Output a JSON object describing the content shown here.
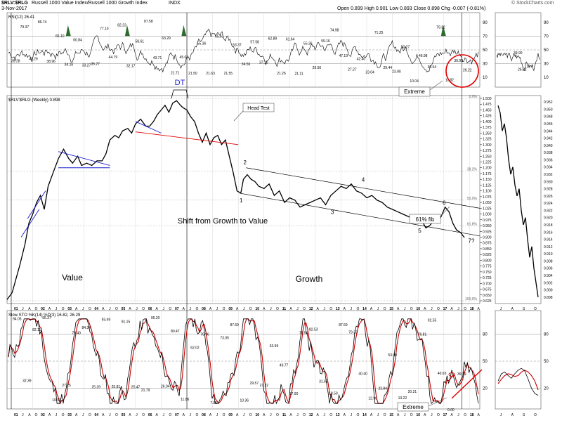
{
  "header": {
    "symbol_title": "$RLV:$RLG",
    "description": "Russell 1000 Value Index/Russell 1000 Growth Index",
    "exchange": "INDX",
    "date": "3-Nov-2017",
    "quote": "Open 0.899  High 0.901  Low 0.893  Close 0.898  Chg -0.007 (-0.81%)",
    "watermark": "© StockCharts.com"
  },
  "colors": {
    "price_line": "#000000",
    "stoch_fast": "#000000",
    "stoch_slow": "#cc0000",
    "rsi_highlight": "#2e6b2e",
    "annotation_red": "#e00000",
    "annotation_blue": "#1a1ad0",
    "grid": "#d9d9d9"
  },
  "chart_data": [
    {
      "type": "line",
      "name": "rsi-panel",
      "title": "RSI(12) 26.41",
      "ylim": [
        0,
        100
      ],
      "y_ticks": [
        10,
        30,
        50,
        70,
        90
      ],
      "reference_lines": [
        30,
        50,
        70
      ],
      "value_labels": [
        "39.28",
        "79.37",
        "42.29",
        "86.74",
        "38.96",
        "66.10",
        "34.16",
        "60.84",
        "33.27",
        "35.27",
        "77.10",
        "44.79",
        "82.23",
        "32.17",
        "58.61",
        "87.58",
        "43.71",
        "63.29",
        "21.71",
        "45.02",
        "21.50",
        "55.36",
        "21.63",
        "65.61",
        "21.55",
        "53.37",
        "34.56",
        "57.58",
        "37.10",
        "62.89",
        "21.26",
        "61.64",
        "21.11",
        "55.36",
        "29.50",
        "59.16",
        "74.98",
        "47.19",
        "27.27",
        "42.40",
        "23.04",
        "71.25",
        "29.44",
        "23.90",
        "50.27",
        "10.04",
        "46.98",
        "30.64",
        "79.32",
        "11.82",
        "39.99",
        "26.22"
      ],
      "annotations": [
        "Extreme"
      ],
      "inset": {
        "value_labels": [
          "39.90",
          "26.22"
        ]
      }
    },
    {
      "type": "line",
      "name": "price-panel",
      "title": "$RLV:$RLG (Weekly) 0.898",
      "ylim": [
        0.625,
        1.5
      ],
      "y_ticks": [
        "1.500",
        "1.475",
        "1.450",
        "1.425",
        "1.400",
        "1.375",
        "1.350",
        "1.325",
        "1.300",
        "1.275",
        "1.250",
        "1.225",
        "1.200",
        "1.175",
        "1.150",
        "1.125",
        "1.100",
        "1.075",
        "1.050",
        "1.025",
        "1.000",
        "0.975",
        "0.950",
        "0.925",
        "0.900",
        "0.875",
        "0.850",
        "0.825",
        "0.800",
        "0.775",
        "0.750",
        "0.725",
        "0.700",
        "0.675",
        "0.650",
        "0.625"
      ],
      "x_ticks": [
        "01",
        "J",
        "A",
        "O",
        "02",
        "A",
        "J",
        "O",
        "03",
        "A",
        "J",
        "O",
        "04",
        "A",
        "J",
        "O",
        "05",
        "A",
        "J",
        "O",
        "06",
        "A",
        "J",
        "O",
        "07",
        "A",
        "J",
        "O",
        "08",
        "A",
        "J",
        "O",
        "09",
        "A",
        "J",
        "O",
        "10",
        "A",
        "J",
        "O",
        "11",
        "A",
        "J",
        "O",
        "12",
        "A",
        "J",
        "O",
        "13",
        "A",
        "J",
        "O",
        "14",
        "A",
        "J",
        "O",
        "15",
        "A",
        "J",
        "O",
        "16",
        "A",
        "J",
        "O",
        "17",
        "A",
        "J",
        "O",
        "18",
        "A"
      ],
      "fib_levels": [
        {
          "label": "0.0%",
          "value": 1.5
        },
        {
          "label": "38.2%",
          "value": 1.186
        },
        {
          "label": "50.0%",
          "value": 1.06
        },
        {
          "label": "61.8%",
          "value": 0.948
        },
        {
          "label": "100.0%",
          "value": 0.625
        }
      ],
      "x": [
        2000.0,
        2000.2,
        2000.35,
        2000.5,
        2000.7,
        2000.85,
        2001.0,
        2001.15,
        2001.3,
        2001.45,
        2001.6,
        2001.8,
        2002.0,
        2002.2,
        2002.4,
        2002.55,
        2002.75,
        2002.9,
        2003.1,
        2003.3,
        2003.5,
        2003.7,
        2003.85,
        2004.0,
        2004.2,
        2004.35,
        2004.5,
        2004.7,
        2004.85,
        2005.0,
        2005.2,
        2005.4,
        2005.55,
        2005.7,
        2005.85,
        2006.0,
        2006.15,
        2006.3,
        2006.45,
        2006.6,
        2006.75,
        2006.85,
        2007.0,
        2007.15,
        2007.3,
        2007.45,
        2007.6,
        2007.75,
        2007.9,
        2008.05,
        2008.2,
        2008.35,
        2008.5,
        2008.65,
        2008.8,
        2008.95,
        2009.1,
        2009.2,
        2009.35,
        2009.5,
        2009.65,
        2009.8,
        2010.0,
        2010.2,
        2010.4,
        2010.6,
        2010.8,
        2011.0,
        2011.2,
        2011.4,
        2011.6,
        2011.8,
        2012.0,
        2012.2,
        2012.4,
        2012.6,
        2012.8,
        2013.0,
        2013.2,
        2013.4,
        2013.6,
        2013.8,
        2014.0,
        2014.2,
        2014.4,
        2014.6,
        2014.8,
        2015.0,
        2015.2,
        2015.4,
        2015.6,
        2015.8,
        2016.0,
        2016.15,
        2016.3,
        2016.45,
        2016.6,
        2016.75,
        2016.9,
        2017.05,
        2017.2,
        2017.35,
        2017.5,
        2017.65,
        2017.8
      ],
      "values": [
        0.63,
        0.66,
        0.72,
        0.78,
        0.87,
        0.96,
        1.0,
        1.05,
        1.08,
        1.02,
        1.12,
        1.18,
        1.24,
        1.28,
        1.24,
        1.22,
        1.25,
        1.21,
        1.22,
        1.21,
        1.23,
        1.23,
        1.26,
        1.32,
        1.34,
        1.33,
        1.36,
        1.37,
        1.35,
        1.39,
        1.41,
        1.38,
        1.38,
        1.4,
        1.43,
        1.45,
        1.47,
        1.44,
        1.48,
        1.49,
        1.47,
        1.46,
        1.45,
        1.42,
        1.4,
        1.35,
        1.31,
        1.35,
        1.3,
        1.33,
        1.34,
        1.3,
        1.32,
        1.25,
        1.18,
        1.1,
        1.09,
        1.15,
        1.17,
        1.15,
        1.14,
        1.12,
        1.11,
        1.13,
        1.08,
        1.1,
        1.05,
        1.07,
        1.06,
        1.03,
        1.04,
        1.05,
        1.06,
        1.07,
        1.04,
        1.08,
        1.1,
        1.12,
        1.11,
        1.13,
        1.1,
        1.09,
        1.07,
        1.08,
        1.06,
        1.05,
        1.03,
        1.02,
        1.01,
        1.0,
        0.99,
        0.98,
        0.96,
        0.97,
        0.94,
        0.95,
        0.97,
        0.96,
        0.99,
        1.03,
        1.01,
        0.96,
        0.93,
        0.92,
        0.898
      ],
      "wave_labels": [
        "1",
        "2",
        "3",
        "4",
        "5",
        "6",
        "7?"
      ],
      "annotations": [
        "DT",
        "Head Test",
        "61% fib",
        "Shift from Growth to Value",
        "Value",
        "Growth"
      ],
      "inset": {
        "x_ticks": [
          "J",
          "A",
          "S",
          "O"
        ],
        "y_ticks": [
          "0.952",
          "0.950",
          "0.948",
          "0.946",
          "0.944",
          "0.942",
          "0.940",
          "0.938",
          "0.936",
          "0.934",
          "0.932",
          "0.930",
          "0.928",
          "0.926",
          "0.924",
          "0.922",
          "0.920",
          "0.918",
          "0.916",
          "0.914",
          "0.912",
          "0.910",
          "0.908",
          "0.906",
          "0.904",
          "0.902",
          "0.900",
          "0.898"
        ],
        "values": [
          0.951,
          0.949,
          0.944,
          0.946,
          0.942,
          0.936,
          0.932,
          0.934,
          0.929,
          0.926,
          0.928,
          0.922,
          0.918,
          0.92,
          0.914,
          0.909,
          0.912,
          0.906,
          0.902,
          0.898
        ]
      }
    },
    {
      "type": "line",
      "name": "stochastic-panel",
      "title": "Slow STO %K(14) %D(3) 16.82, 26.29",
      "ylim": [
        0,
        100
      ],
      "y_ticks": [
        20,
        50,
        80
      ],
      "reference_lines": [
        20,
        50,
        80
      ],
      "value_labels": [
        "94.05",
        "32.39",
        "82.11",
        "95.37",
        "10.92",
        "27.25",
        "78.40",
        "84.34",
        "25.39",
        "93.49",
        "25.81",
        "91.15",
        "25.47",
        "21.79",
        "95.20",
        "26.04",
        "80.47",
        "11.86",
        "62.02",
        "76.96",
        "7.85",
        "73.05",
        "87.69",
        "10.36",
        "29.57",
        "27.22",
        "63.99",
        "49.77",
        "17.90",
        "78.54",
        "82.53",
        "31.65",
        "18.50",
        "87.69",
        "79.33",
        "40.40",
        "12.90",
        "23.84",
        "53.90",
        "13.22",
        "20.21",
        "76.81",
        "92.55",
        "40.65",
        "0.00",
        "39.79"
      ],
      "annotations": [
        "Extreme"
      ],
      "inset": {
        "x_ticks": [
          "J",
          "A",
          "S",
          "O"
        ]
      }
    }
  ]
}
